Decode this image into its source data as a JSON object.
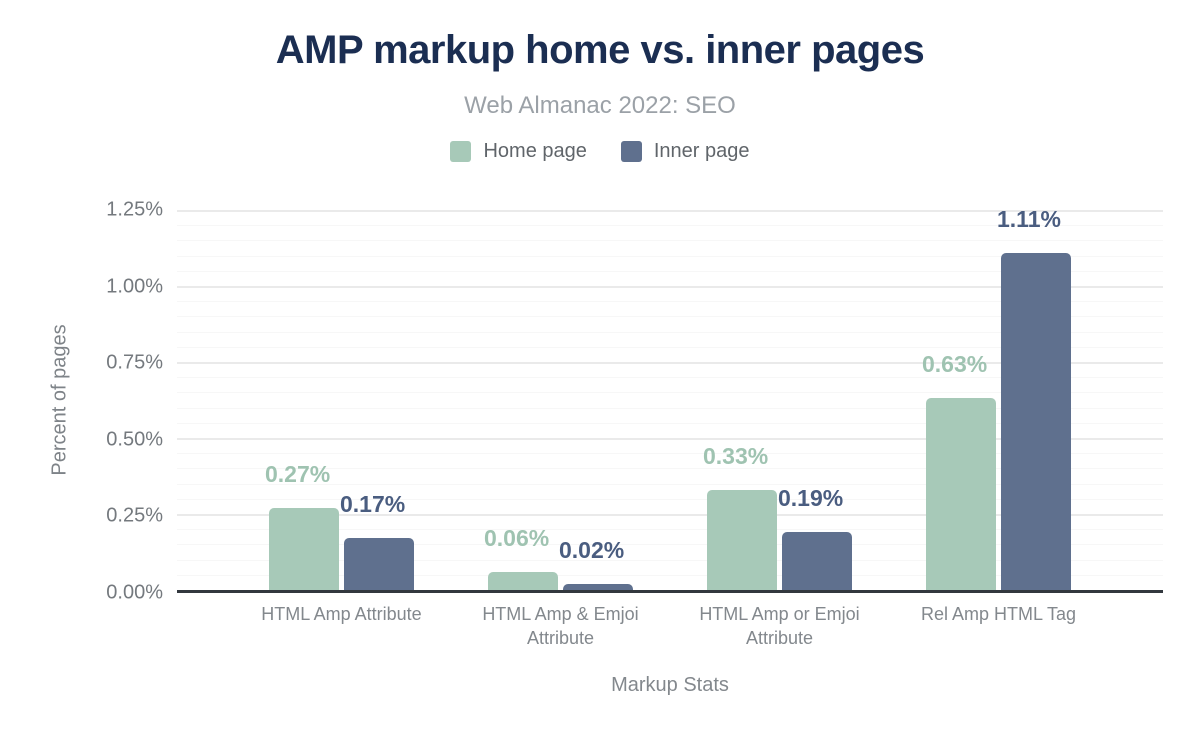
{
  "header": {
    "title": "AMP markup home vs. inner pages",
    "subtitle": "Web Almanac 2022: SEO"
  },
  "legend": [
    {
      "label": "Home page",
      "color": "#a7c9b8"
    },
    {
      "label": "Inner page",
      "color": "#5f708e"
    }
  ],
  "axes": {
    "y_title": "Percent of pages",
    "x_title": "Markup Stats"
  },
  "colors": {
    "home_bar": "#a7c9b8",
    "inner_bar": "#5f708e",
    "home_label": "#9fc3b1",
    "inner_label": "#4a5d80",
    "title_navy": "#1b2e52",
    "axis_line": "#32383e"
  },
  "chart_data": {
    "type": "bar",
    "title": "AMP markup home vs. inner pages",
    "subtitle": "Web Almanac 2022: SEO",
    "xlabel": "Markup Stats",
    "ylabel": "Percent of pages",
    "categories": [
      "HTML Amp Attribute",
      "HTML Amp & Emjoi Attribute",
      "HTML Amp or Emjoi Attribute",
      "Rel Amp HTML Tag"
    ],
    "series": [
      {
        "name": "Home page",
        "color": "#a7c9b8",
        "label_color": "#9fc3b1",
        "values": [
          0.27,
          0.06,
          0.33,
          0.63
        ],
        "labels": [
          "0.27%",
          "0.06%",
          "0.33%",
          "0.63%"
        ]
      },
      {
        "name": "Inner page",
        "color": "#5f708e",
        "label_color": "#4a5d80",
        "values": [
          0.17,
          0.02,
          0.19,
          1.11
        ],
        "labels": [
          "0.17%",
          "0.02%",
          "0.19%",
          "1.11%"
        ]
      }
    ],
    "ylim": [
      0,
      1.25
    ],
    "yticks": [
      "1.25%",
      "1.00%",
      "0.75%",
      "0.50%",
      "0.25%",
      "0.00%"
    ],
    "ytick_values": [
      1.25,
      1.0,
      0.75,
      0.5,
      0.25,
      0
    ],
    "minor_grid_step": 0.05,
    "major_grid_step": 0.25,
    "grid": "horizontal",
    "legend_position": "top"
  }
}
